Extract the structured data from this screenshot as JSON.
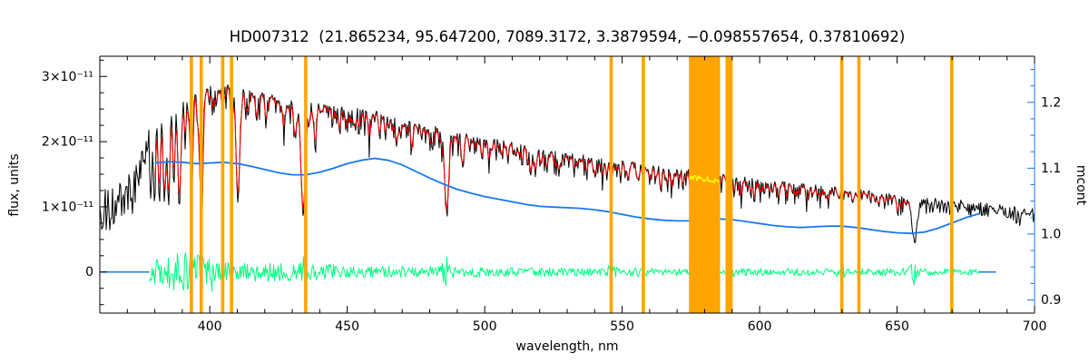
{
  "chart_data": {
    "type": "line",
    "title": "HD007312  (21.865234, 95.647200, 7089.3172, 3.3879594, −0.098557654, 0.37810692)",
    "xlabel": "wavelength, nm",
    "ylabel_left": "flux, units",
    "ylabel_right": "mcont",
    "x_range": [
      360,
      700
    ],
    "y_left_range": [
      -0.63,
      3.31
    ],
    "y_right_range": [
      0.88,
      1.27
    ],
    "x_ticks": [
      400,
      450,
      500,
      550,
      600,
      650,
      700
    ],
    "x_minor_step": 10,
    "y_left_ticks": [
      {
        "value": 0,
        "label": "0"
      },
      {
        "value": 1,
        "label": "1×10⁻¹¹"
      },
      {
        "value": 2,
        "label": "2×10⁻¹¹"
      },
      {
        "value": 3,
        "label": "3×10⁻¹¹"
      }
    ],
    "y_left_minor_step": 0.25,
    "y_right_ticks": [
      {
        "value": 0.9,
        "label": "0.9"
      },
      {
        "value": 1.0,
        "label": "1.0"
      },
      {
        "value": 1.1,
        "label": "1.1"
      },
      {
        "value": 1.2,
        "label": "1.2"
      }
    ],
    "y_right_minor_step": 0.025,
    "colors": {
      "black": "#000000",
      "red": "#ff0000",
      "green": "#00ff7f",
      "blue": "#1778f2",
      "orange": "#ffa400",
      "yellow": "#ffff00",
      "frame": "#000000"
    },
    "series": {
      "observed_spectrum": {
        "name": "observed flux spectrum",
        "color": "#000000",
        "range": [
          360,
          700
        ],
        "flux_unit": "1e-11",
        "seed": 1234567,
        "continuum": [
          [
            360,
            0.92
          ],
          [
            363,
            0.95
          ],
          [
            366,
            1.0
          ],
          [
            369,
            1.08
          ],
          [
            371,
            1.18
          ],
          [
            373,
            1.35
          ],
          [
            375,
            1.6
          ],
          [
            377,
            1.9
          ],
          [
            379,
            2.18
          ],
          [
            381,
            2.42
          ],
          [
            384,
            2.56
          ],
          [
            387,
            2.64
          ],
          [
            390,
            2.7
          ],
          [
            394,
            2.76
          ],
          [
            398,
            2.8
          ],
          [
            402,
            2.84
          ],
          [
            406,
            2.88
          ],
          [
            409,
            2.85
          ],
          [
            412,
            2.78
          ],
          [
            416,
            2.74
          ],
          [
            420,
            2.7
          ],
          [
            425,
            2.66
          ],
          [
            430,
            2.62
          ],
          [
            435,
            2.59
          ],
          [
            440,
            2.56
          ],
          [
            445,
            2.53
          ],
          [
            450,
            2.5
          ],
          [
            456,
            2.47
          ],
          [
            461,
            2.43
          ],
          [
            466,
            2.37
          ],
          [
            471,
            2.3
          ],
          [
            476,
            2.25
          ],
          [
            481,
            2.2
          ],
          [
            486,
            2.16
          ],
          [
            491,
            2.11
          ],
          [
            496,
            2.07
          ],
          [
            501,
            2.03
          ],
          [
            508,
            1.98
          ],
          [
            515,
            1.92
          ],
          [
            522,
            1.86
          ],
          [
            529,
            1.81
          ],
          [
            536,
            1.76
          ],
          [
            543,
            1.71
          ],
          [
            550,
            1.67
          ],
          [
            557,
            1.63
          ],
          [
            564,
            1.59
          ],
          [
            571,
            1.55
          ],
          [
            578,
            1.51
          ],
          [
            585,
            1.47
          ],
          [
            592,
            1.44
          ],
          [
            599,
            1.4
          ],
          [
            606,
            1.37
          ],
          [
            613,
            1.33
          ],
          [
            620,
            1.3
          ],
          [
            627,
            1.27
          ],
          [
            634,
            1.24
          ],
          [
            641,
            1.2
          ],
          [
            648,
            1.17
          ],
          [
            655,
            1.14
          ],
          [
            662,
            1.11
          ],
          [
            669,
            1.08
          ],
          [
            676,
            1.05
          ],
          [
            683,
            1.02
          ],
          [
            690,
            0.99
          ],
          [
            695,
            0.96
          ],
          [
            700,
            0.93
          ]
        ],
        "absorption_lines": [
          [
            378.5,
            1.0,
            0.45
          ],
          [
            379.9,
            1.2,
            0.5
          ],
          [
            381.6,
            1.4,
            0.55
          ],
          [
            383.5,
            1.5,
            0.6
          ],
          [
            385.0,
            1.55,
            0.65
          ],
          [
            386.9,
            1.3,
            0.5
          ],
          [
            388.9,
            1.7,
            0.7
          ],
          [
            391.2,
            0.5,
            0.4
          ],
          [
            393.4,
            1.6,
            0.6
          ],
          [
            395.5,
            0.45,
            0.35
          ],
          [
            396.9,
            1.85,
            0.8
          ],
          [
            400.9,
            0.4,
            0.35
          ],
          [
            404.7,
            0.5,
            0.4
          ],
          [
            407.8,
            0.45,
            0.4
          ],
          [
            410.2,
            1.75,
            0.9
          ],
          [
            413.1,
            0.35,
            0.35
          ],
          [
            417.2,
            0.4,
            0.35
          ],
          [
            420.5,
            0.45,
            0.4
          ],
          [
            427.0,
            0.5,
            0.4
          ],
          [
            430.8,
            0.55,
            0.45
          ],
          [
            434.0,
            1.7,
            1.0
          ],
          [
            438.5,
            0.5,
            0.4
          ],
          [
            447.2,
            0.4,
            0.4
          ],
          [
            453.0,
            0.28,
            0.35
          ],
          [
            458.0,
            0.3,
            0.35
          ],
          [
            464.0,
            0.3,
            0.35
          ],
          [
            468.5,
            0.25,
            0.3
          ],
          [
            473.5,
            0.3,
            0.35
          ],
          [
            481.0,
            0.35,
            0.35
          ],
          [
            486.1,
            1.22,
            1.0
          ],
          [
            492.0,
            0.3,
            0.35
          ],
          [
            501.5,
            0.3,
            0.35
          ],
          [
            508.5,
            0.28,
            0.35
          ],
          [
            516.7,
            0.4,
            0.5
          ],
          [
            518.4,
            0.35,
            0.4
          ],
          [
            527.0,
            0.35,
            0.4
          ],
          [
            532.5,
            0.25,
            0.3
          ],
          [
            537.0,
            0.25,
            0.35
          ],
          [
            543.0,
            0.22,
            0.3
          ],
          [
            546.0,
            0.25,
            0.35
          ],
          [
            552.0,
            0.22,
            0.3
          ],
          [
            560.0,
            0.22,
            0.3
          ],
          [
            568.0,
            0.2,
            0.3
          ],
          [
            575.0,
            0.2,
            0.3
          ],
          [
            583.0,
            0.2,
            0.3
          ],
          [
            589.0,
            0.38,
            0.5
          ],
          [
            593.5,
            0.18,
            0.3
          ],
          [
            598.0,
            0.18,
            0.3
          ],
          [
            607.0,
            0.18,
            0.3
          ],
          [
            612.0,
            0.16,
            0.3
          ],
          [
            617.0,
            0.18,
            0.3
          ],
          [
            625.0,
            0.16,
            0.3
          ],
          [
            634.0,
            0.18,
            0.3
          ],
          [
            643.0,
            0.16,
            0.3
          ],
          [
            650.0,
            0.18,
            0.3
          ],
          [
            656.3,
            0.62,
            1.3
          ],
          [
            663.0,
            0.15,
            0.3
          ],
          [
            672.0,
            0.14,
            0.3
          ],
          [
            681.0,
            0.14,
            0.3
          ],
          [
            690.0,
            0.13,
            0.3
          ]
        ],
        "noise_segments": [
          [
            360,
            374,
            0.36
          ],
          [
            374,
            378,
            0.28
          ],
          [
            378,
            384,
            0.1
          ],
          [
            384,
            700,
            0.045
          ]
        ],
        "forest_segments": [
          [
            378,
            386,
            0.1
          ],
          [
            386,
            500,
            0.13
          ],
          [
            500,
            600,
            0.11
          ],
          [
            600,
            656,
            0.1
          ],
          [
            656,
            700,
            0.07
          ]
        ]
      },
      "model_spectrum": {
        "name": "fitted model spectrum",
        "color": "#ff0000",
        "range": [
          380,
          655
        ],
        "smooth_window": 3
      },
      "residual": {
        "name": "fit residual",
        "color": "#00ff7f",
        "range": [
          378,
          680
        ],
        "baseline": 0,
        "seed": 424242,
        "noise_segments": [
          [
            378,
            384,
            0.2
          ],
          [
            384,
            402,
            0.3
          ],
          [
            402,
            430,
            0.15
          ],
          [
            430,
            445,
            0.12
          ],
          [
            445,
            500,
            0.09
          ],
          [
            500,
            560,
            0.065
          ],
          [
            560,
            680,
            0.055
          ]
        ],
        "spikes": [
          [
            434,
            0.22
          ],
          [
            486,
            0.16
          ],
          [
            546,
            0.1
          ],
          [
            589,
            0.13
          ],
          [
            630,
            0.1
          ],
          [
            656,
            0.22
          ]
        ]
      },
      "continuum_ratio": {
        "name": "mcont continuum ratio",
        "color": "#1778f2",
        "axis": "right",
        "points": [
          [
            380,
            1.108
          ],
          [
            385,
            1.11
          ],
          [
            390,
            1.109
          ],
          [
            395,
            1.107
          ],
          [
            400,
            1.108
          ],
          [
            405,
            1.109
          ],
          [
            410,
            1.107
          ],
          [
            415,
            1.103
          ],
          [
            420,
            1.098
          ],
          [
            425,
            1.093
          ],
          [
            430,
            1.09
          ],
          [
            435,
            1.09
          ],
          [
            440,
            1.094
          ],
          [
            445,
            1.1
          ],
          [
            450,
            1.107
          ],
          [
            455,
            1.112
          ],
          [
            460,
            1.115
          ],
          [
            465,
            1.112
          ],
          [
            470,
            1.105
          ],
          [
            475,
            1.095
          ],
          [
            480,
            1.085
          ],
          [
            485,
            1.076
          ],
          [
            490,
            1.068
          ],
          [
            495,
            1.062
          ],
          [
            500,
            1.057
          ],
          [
            505,
            1.053
          ],
          [
            510,
            1.049
          ],
          [
            515,
            1.045
          ],
          [
            520,
            1.042
          ],
          [
            525,
            1.041
          ],
          [
            530,
            1.04
          ],
          [
            535,
            1.039
          ],
          [
            540,
            1.037
          ],
          [
            545,
            1.034
          ],
          [
            550,
            1.03
          ],
          [
            555,
            1.026
          ],
          [
            560,
            1.023
          ],
          [
            565,
            1.021
          ],
          [
            570,
            1.02
          ],
          [
            575,
            1.02
          ],
          [
            580,
            1.022
          ],
          [
            585,
            1.023
          ],
          [
            590,
            1.022
          ],
          [
            595,
            1.019
          ],
          [
            600,
            1.016
          ],
          [
            605,
            1.013
          ],
          [
            610,
            1.011
          ],
          [
            615,
            1.01
          ],
          [
            620,
            1.011
          ],
          [
            625,
            1.012
          ],
          [
            630,
            1.012
          ],
          [
            635,
            1.01
          ],
          [
            640,
            1.007
          ],
          [
            645,
            1.004
          ],
          [
            650,
            1.002
          ],
          [
            655,
            1.001
          ],
          [
            660,
            1.003
          ],
          [
            665,
            1.009
          ],
          [
            670,
            1.017
          ],
          [
            675,
            1.025
          ],
          [
            680,
            1.031
          ]
        ]
      },
      "zero_line": {
        "name": "zero baseline segments",
        "color": "#1778f2",
        "segments": [
          [
            360.3,
            378
          ],
          [
            679.7,
            686
          ]
        ]
      },
      "masked_segment": {
        "name": "masked spectrum segment",
        "color": "#ffff00",
        "range": [
          574.5,
          585.4
        ],
        "offset": -0.07,
        "noise_amp": 0.04,
        "seed": 77
      }
    },
    "masks_orange": [
      [
        392.7,
        393.9
      ],
      [
        396.3,
        397.5
      ],
      [
        404.1,
        405.3
      ],
      [
        407.3,
        408.5
      ],
      [
        434.3,
        435.5
      ],
      [
        545.4,
        546.6
      ],
      [
        557.1,
        558.3
      ],
      [
        574.3,
        585.6
      ],
      [
        587.6,
        590.2
      ],
      [
        629.3,
        630.5
      ],
      [
        635.5,
        636.7
      ],
      [
        669.3,
        670.5
      ]
    ]
  }
}
